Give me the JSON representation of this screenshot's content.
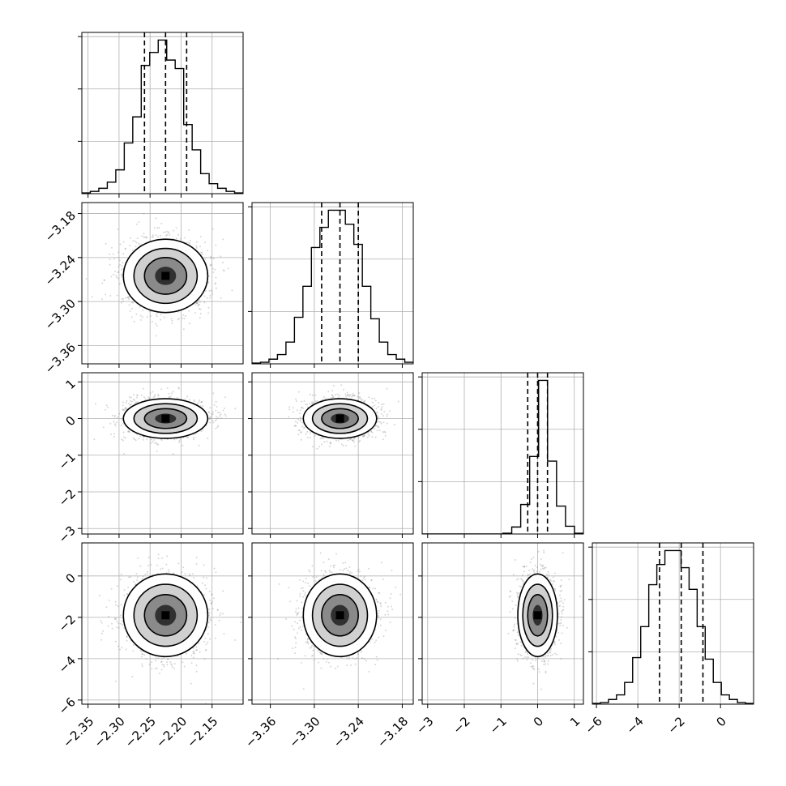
{
  "figure": {
    "title": "",
    "type": "corner-plot"
  },
  "colors": {
    "background": "#ffffff",
    "ink": "#000000",
    "grid": "#b0b0b0",
    "scatter": "#8c8c8c"
  },
  "chart_data": {
    "type": "corner",
    "grid": true,
    "parameters": [
      {
        "label": "",
        "range": [
          -2.36,
          -2.1
        ],
        "ticks": [
          -2.35,
          -2.3,
          -2.25,
          -2.2,
          -2.15
        ],
        "tick_labels": [
          "−2.35",
          "−2.30",
          "−2.25",
          "−2.20",
          "−2.15"
        ],
        "mean": -2.225,
        "sigma": 0.034,
        "quantiles": [
          -2.259,
          -2.225,
          -2.191
        ],
        "hist_counts": [
          0.005,
          0.015,
          0.035,
          0.075,
          0.155,
          0.33,
          0.5,
          0.835,
          0.92,
          1.0,
          0.87,
          0.815,
          0.45,
          0.285,
          0.13,
          0.065,
          0.035,
          0.015,
          0.005
        ]
      },
      {
        "label": "",
        "range": [
          -3.385,
          -3.165
        ],
        "ticks": [
          -3.36,
          -3.3,
          -3.24,
          -3.18
        ],
        "tick_labels": [
          "−3.36",
          "−3.30",
          "−3.24",
          "−3.18"
        ],
        "mean": -3.265,
        "sigma": 0.025,
        "quantiles": [
          -3.29,
          -3.265,
          -3.24
        ],
        "hist_counts": [
          0.005,
          0.01,
          0.03,
          0.06,
          0.14,
          0.3,
          0.5,
          0.75,
          0.88,
          0.99,
          0.99,
          0.9,
          0.77,
          0.5,
          0.29,
          0.14,
          0.06,
          0.03,
          0.01
        ]
      },
      {
        "label": "",
        "range": [
          -3.15,
          1.25
        ],
        "ticks": [
          -3,
          -2,
          -1,
          0,
          1
        ],
        "tick_labels": [
          "−3",
          "−2",
          "−1",
          "0",
          "1"
        ],
        "mean": 0.0,
        "sigma": 0.27,
        "quantiles": [
          -0.27,
          0.0,
          0.27
        ],
        "hist_counts": [
          0.0,
          0.0,
          0.0,
          0.0,
          0.0,
          0.0,
          0.0,
          0.0,
          0.0,
          0.005,
          0.045,
          0.19,
          0.5,
          0.99,
          0.47,
          0.18,
          0.05,
          0.005
        ]
      },
      {
        "label": "",
        "range": [
          -6.2,
          1.6
        ],
        "ticks": [
          -6,
          -4,
          -2,
          0
        ],
        "tick_labels": [
          "−6",
          "−4",
          "−2",
          "0"
        ],
        "mean": -1.9,
        "sigma": 1.0,
        "quantiles": [
          -2.95,
          -1.9,
          -0.85
        ],
        "hist_counts": [
          0.005,
          0.01,
          0.03,
          0.06,
          0.14,
          0.3,
          0.5,
          0.77,
          0.9,
          0.99,
          0.99,
          0.88,
          0.74,
          0.5,
          0.29,
          0.14,
          0.06,
          0.03,
          0.01,
          0.005
        ]
      }
    ],
    "histogram_y_ticks": 3,
    "contour_levels_sigma": [
      0.5,
      1.0,
      1.5,
      2.0
    ],
    "scatter_points_per_panel": 1500
  }
}
